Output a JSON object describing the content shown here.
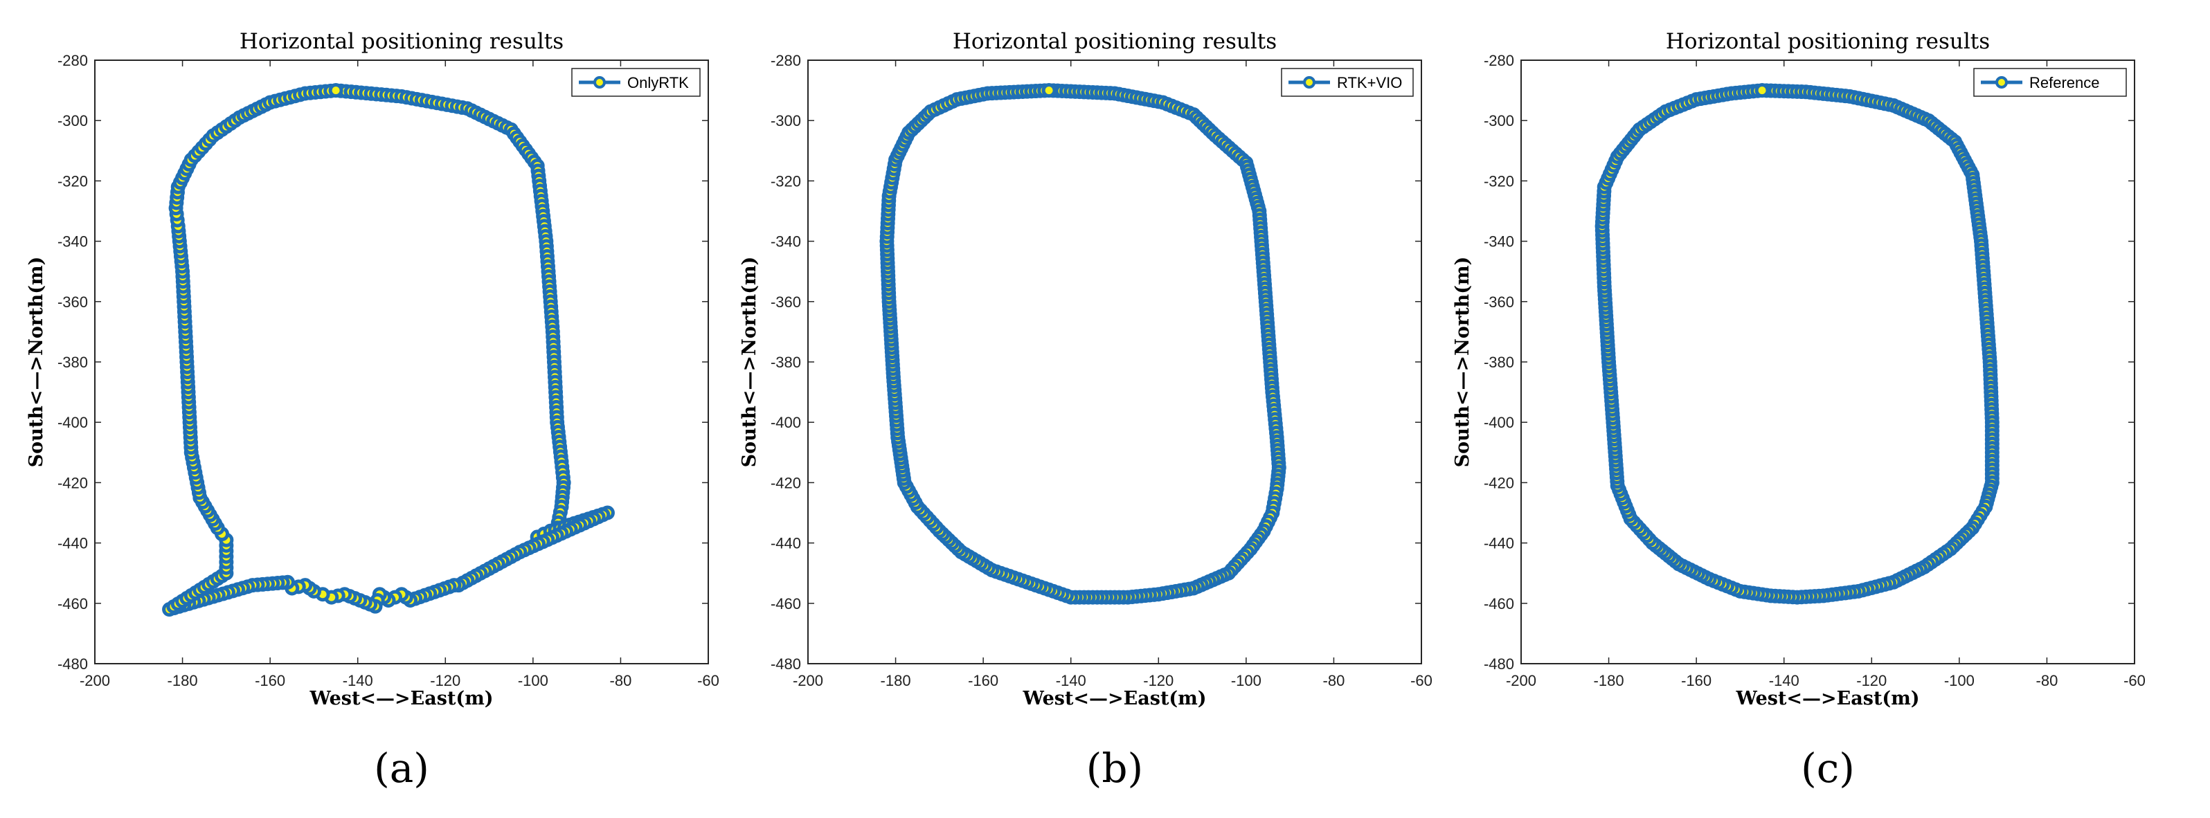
{
  "chart_data": [
    {
      "type": "line",
      "title": "Horizontal positioning results",
      "xlabel": "West<—>East(m)",
      "ylabel": "South<—>North(m)",
      "xlim": [
        -200,
        -60
      ],
      "ylim": [
        -480,
        -280
      ],
      "xticks": [
        -200,
        -180,
        -160,
        -140,
        -120,
        -100,
        -80,
        -60
      ],
      "yticks": [
        -280,
        -300,
        -320,
        -340,
        -360,
        -380,
        -400,
        -420,
        -440,
        -460,
        -480
      ],
      "legend": "top-right",
      "series": [
        {
          "name": "OnlyRTK",
          "x": [
            -145,
            -130,
            -115,
            -105,
            -99,
            -97,
            -95.5,
            -94.5,
            -93.5,
            -93,
            -93.5,
            -94.5,
            -96,
            -99,
            -96,
            -83,
            -103,
            -117,
            -118,
            -128,
            -130,
            -133,
            -135,
            -136,
            -143,
            -146,
            -148,
            -150,
            -152,
            -155,
            -156,
            -164,
            -183,
            -170,
            -170,
            -171,
            -172,
            -176,
            -178,
            -179,
            -180,
            -181,
            -181.5,
            -181,
            -178,
            -173,
            -167,
            -160,
            -152,
            -145
          ],
          "y": [
            -290,
            -292,
            -296,
            -303,
            -315,
            -340,
            -370,
            -400,
            -413,
            -420,
            -428,
            -435,
            -437,
            -438,
            -436,
            -430,
            -443,
            -454,
            -454,
            -459,
            -457,
            -459,
            -457,
            -461,
            -457,
            -458,
            -457,
            -456,
            -454,
            -455,
            -453,
            -454,
            -462,
            -450,
            -439,
            -437,
            -435,
            -425,
            -410,
            -380,
            -350,
            -335,
            -329,
            -322,
            -313,
            -305,
            -299,
            -294,
            -291,
            -290
          ]
        },
        {
          "name": "RTK+VIO",
          "x": [
            -145,
            -130,
            -119,
            -112,
            -107,
            -100,
            -97,
            -96,
            -95,
            -94,
            -93,
            -92.5,
            -93,
            -94,
            -96,
            -99,
            -104,
            -112,
            -120,
            -127,
            -134,
            -140,
            -146,
            -152,
            -158,
            -165,
            -170,
            -175,
            -178,
            -179.5,
            -180.5,
            -181.5,
            -182,
            -181.5,
            -180,
            -177,
            -172,
            -166,
            -159,
            -152,
            -145
          ],
          "y": [
            -290,
            -291,
            -294,
            -298,
            -305,
            -314,
            -330,
            -350,
            -370,
            -390,
            -405,
            -415,
            -422,
            -430,
            -436,
            -442,
            -450,
            -455,
            -457,
            -458,
            -458,
            -458,
            -455,
            -452,
            -449,
            -443,
            -436,
            -428,
            -420,
            -405,
            -385,
            -360,
            -340,
            -325,
            -313,
            -304,
            -297,
            -293,
            -291,
            -290.5,
            -290
          ]
        },
        {
          "name": "Reference",
          "x": [
            -145,
            -135,
            -125,
            -115,
            -107,
            -101,
            -97,
            -95,
            -94,
            -93,
            -92.5,
            -92.5,
            -94,
            -97,
            -102,
            -108,
            -115,
            -123,
            -131,
            -137,
            -143,
            -150,
            -157,
            -164,
            -170,
            -175,
            -178,
            -179,
            -180,
            -181,
            -181.5,
            -181,
            -178,
            -173,
            -167,
            -160,
            -152,
            -145
          ],
          "y": [
            -290,
            -290.5,
            -292,
            -295,
            -300,
            -307,
            -318,
            -340,
            -360,
            -380,
            -400,
            -420,
            -428,
            -435,
            -442,
            -448,
            -453,
            -456,
            -457.5,
            -458,
            -457.5,
            -456,
            -452,
            -447,
            -440,
            -432,
            -421,
            -400,
            -380,
            -355,
            -335,
            -322,
            -312,
            -303,
            -297,
            -293,
            -291,
            -290
          ]
        }
      ]
    }
  ],
  "panel_labels": [
    "(a)",
    "(b)",
    "(c)"
  ]
}
